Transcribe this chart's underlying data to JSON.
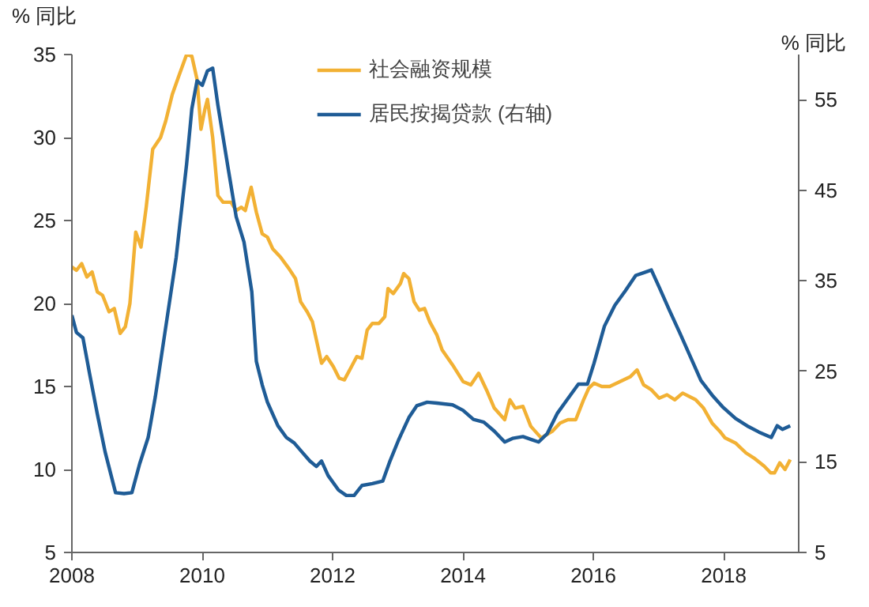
{
  "chart_data": {
    "type": "line",
    "ylabel": "% 同比",
    "y2label": "% 同比",
    "xlim": [
      2008,
      2019.15
    ],
    "xticks": [
      2008,
      2010,
      2012,
      2014,
      2016,
      2018
    ],
    "ylim": [
      5,
      35
    ],
    "yticks": [
      5,
      10,
      15,
      20,
      25,
      30,
      35
    ],
    "y2lim": [
      5,
      60
    ],
    "y2ticks": [
      5,
      15,
      25,
      35,
      45,
      55
    ],
    "grid": false,
    "legend": "top",
    "marker": "none",
    "line_style": "solid",
    "series": [
      {
        "name": "社会融资规模",
        "color": "#f2b134",
        "x": [
          2008.0,
          2008.07,
          2008.15,
          2008.23,
          2008.31,
          2008.39,
          2008.47,
          2008.57,
          2008.65,
          2008.74,
          2008.82,
          2008.89,
          2008.98,
          2009.06,
          2009.14,
          2009.24,
          2009.36,
          2009.44,
          2009.54,
          2009.64,
          2009.76,
          2009.84,
          2009.92,
          2009.98,
          2010.04,
          2010.08,
          2010.16,
          2010.24,
          2010.32,
          2010.44,
          2010.52,
          2010.6,
          2010.66,
          2010.75,
          2010.83,
          2010.92,
          2011.0,
          2011.08,
          2011.2,
          2011.33,
          2011.43,
          2011.51,
          2011.61,
          2011.69,
          2011.83,
          2011.91,
          2012.01,
          2012.1,
          2012.18,
          2012.29,
          2012.37,
          2012.45,
          2012.53,
          2012.61,
          2012.71,
          2012.8,
          2012.85,
          2012.93,
          2013.04,
          2013.09,
          2013.17,
          2013.25,
          2013.33,
          2013.41,
          2013.49,
          2013.6,
          2013.68,
          2013.84,
          2014.0,
          2014.12,
          2014.24,
          2014.36,
          2014.48,
          2014.64,
          2014.72,
          2014.8,
          2014.92,
          2015.04,
          2015.2,
          2015.37,
          2015.49,
          2015.61,
          2015.73,
          2015.85,
          2015.93,
          2016.01,
          2016.13,
          2016.25,
          2016.41,
          2016.57,
          2016.67,
          2016.77,
          2016.89,
          2017.01,
          2017.13,
          2017.25,
          2017.37,
          2017.57,
          2017.69,
          2017.82,
          2017.94,
          2018.02,
          2018.18,
          2018.34,
          2018.46,
          2018.62,
          2018.72,
          2018.78,
          2018.86,
          2018.94,
          2019.02
        ],
        "values": [
          22.2,
          22.0,
          22.4,
          21.6,
          21.9,
          20.7,
          20.5,
          19.5,
          19.7,
          18.2,
          18.6,
          20.0,
          24.3,
          23.4,
          25.8,
          29.3,
          30.0,
          31.0,
          32.6,
          33.7,
          35.0,
          34.9,
          33.5,
          30.5,
          31.7,
          32.3,
          30.0,
          26.5,
          26.1,
          26.1,
          25.6,
          25.8,
          25.6,
          27.0,
          25.5,
          24.2,
          24.0,
          23.3,
          22.8,
          22.1,
          21.5,
          20.1,
          19.5,
          18.9,
          16.4,
          16.8,
          16.2,
          15.5,
          15.4,
          16.2,
          16.8,
          16.7,
          18.4,
          18.8,
          18.8,
          19.2,
          20.9,
          20.6,
          21.2,
          21.8,
          21.5,
          20.1,
          19.6,
          19.7,
          18.9,
          18.1,
          17.2,
          16.3,
          15.3,
          15.1,
          15.8,
          14.8,
          13.7,
          13.0,
          14.2,
          13.7,
          13.8,
          12.6,
          11.9,
          12.3,
          12.8,
          13.0,
          13.0,
          14.2,
          14.9,
          15.2,
          15.0,
          15.0,
          15.3,
          15.6,
          16.0,
          15.1,
          14.8,
          14.3,
          14.5,
          14.2,
          14.6,
          14.2,
          13.7,
          12.8,
          12.3,
          11.9,
          11.6,
          11.0,
          10.7,
          10.2,
          9.8,
          9.8,
          10.4,
          10.0,
          10.6
        ]
      },
      {
        "name": "居民按揭贷款 (右轴)",
        "color": "#1f5c96",
        "axis": "y2",
        "x": [
          2008.0,
          2008.07,
          2008.17,
          2008.27,
          2008.39,
          2008.51,
          2008.67,
          2008.8,
          2008.92,
          2009.04,
          2009.17,
          2009.28,
          2009.44,
          2009.6,
          2009.76,
          2009.84,
          2009.92,
          2010.0,
          2010.08,
          2010.16,
          2010.24,
          2010.4,
          2010.52,
          2010.64,
          2010.76,
          2010.83,
          2010.92,
          2011.0,
          2011.16,
          2011.29,
          2011.41,
          2011.53,
          2011.65,
          2011.75,
          2011.83,
          2011.93,
          2012.09,
          2012.21,
          2012.33,
          2012.45,
          2012.61,
          2012.77,
          2012.88,
          2013.01,
          2013.17,
          2013.29,
          2013.45,
          2013.6,
          2013.84,
          2014.0,
          2014.16,
          2014.32,
          2014.48,
          2014.64,
          2014.76,
          2014.92,
          2015.04,
          2015.16,
          2015.29,
          2015.45,
          2015.61,
          2015.77,
          2015.91,
          2016.01,
          2016.17,
          2016.33,
          2016.49,
          2016.65,
          2016.77,
          2016.89,
          2017.01,
          2017.17,
          2017.33,
          2017.49,
          2017.65,
          2017.82,
          2017.98,
          2018.18,
          2018.38,
          2018.54,
          2018.73,
          2018.82,
          2018.9,
          2019.02
        ],
        "values": [
          31.2,
          29.3,
          28.7,
          24.8,
          20.3,
          16.1,
          11.6,
          11.5,
          11.6,
          14.8,
          17.7,
          22.2,
          29.9,
          37.6,
          47.9,
          54.0,
          57.1,
          56.6,
          58.2,
          58.5,
          54.4,
          47.3,
          42.1,
          39.3,
          33.8,
          26.1,
          23.5,
          21.6,
          19.0,
          17.7,
          17.1,
          16.1,
          15.1,
          14.5,
          15.1,
          13.5,
          11.9,
          11.3,
          11.3,
          12.4,
          12.6,
          12.9,
          15.1,
          17.4,
          19.9,
          21.2,
          21.6,
          21.5,
          21.3,
          20.7,
          19.7,
          19.4,
          18.4,
          17.2,
          17.6,
          17.8,
          17.5,
          17.2,
          18.1,
          20.4,
          22.0,
          23.6,
          23.6,
          25.9,
          30.0,
          32.3,
          33.9,
          35.6,
          35.9,
          36.2,
          34.3,
          31.7,
          29.2,
          26.6,
          24.0,
          22.4,
          21.1,
          19.8,
          18.9,
          18.3,
          17.7,
          19.0,
          18.6,
          19.0
        ]
      }
    ]
  }
}
